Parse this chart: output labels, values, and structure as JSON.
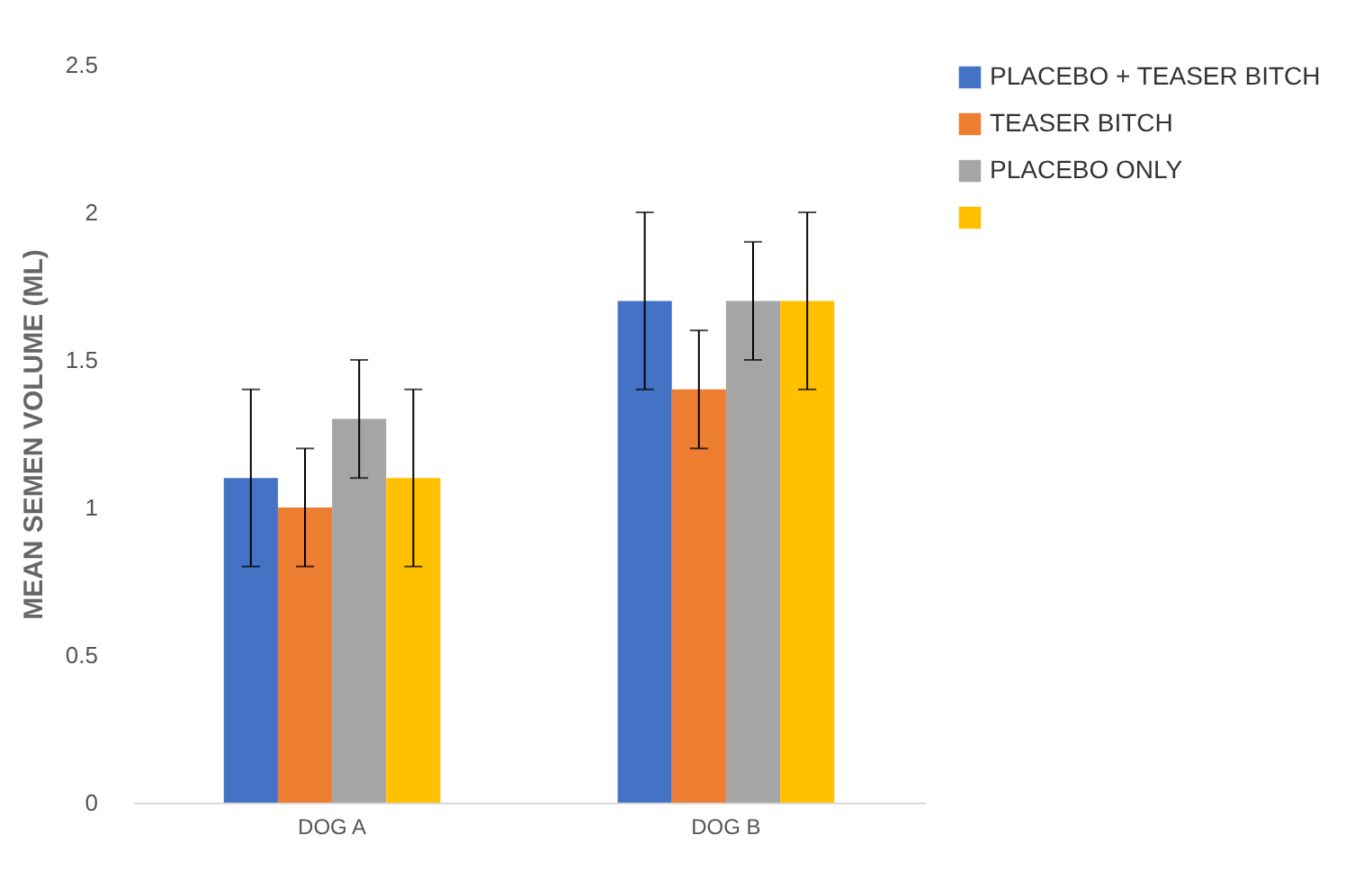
{
  "chart_data": {
    "type": "bar",
    "ylabel": "MEAN SEMEN VOLUME (ML)",
    "categories": [
      "DOG A",
      "DOG B"
    ],
    "series": [
      {
        "name": "PLACEBO + TEASER BITCH",
        "color": "#4472c4",
        "values": [
          1.1,
          1.7
        ],
        "errors": [
          0.3,
          0.3
        ]
      },
      {
        "name": "TEASER BITCH",
        "color": "#ed7d31",
        "values": [
          1.0,
          1.4
        ],
        "errors": [
          0.2,
          0.2
        ]
      },
      {
        "name": "PLACEBO ONLY",
        "color": "#a5a5a5",
        "values": [
          1.3,
          1.7
        ],
        "errors": [
          0.2,
          0.2
        ]
      },
      {
        "color": "#ffc000",
        "values": [
          1.1,
          1.7
        ],
        "errors": [
          0.3,
          0.3
        ]
      }
    ],
    "ylim": [
      0,
      2.5
    ],
    "yticks": [
      0,
      0.5,
      1,
      1.5,
      2,
      2.5
    ],
    "grid": false,
    "legend": "right"
  }
}
